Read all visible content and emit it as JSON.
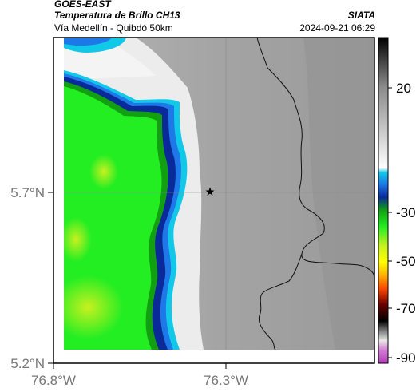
{
  "header": {
    "satellite": "GOES-EAST",
    "product": "Temperatura de Brillo CH13",
    "region": "Vía Medellín - Quibdó 50km",
    "organization": "SIATA",
    "timestamp": "2024-09-21 06:29"
  },
  "axes": {
    "lat_ticks": [
      "5.7°N",
      "5.2°N"
    ],
    "lon_ticks": [
      "76.8°W",
      "76.3°W"
    ]
  },
  "colorbar": {
    "ticks": [
      "20",
      "-30",
      "-50",
      "-70",
      "-90"
    ]
  },
  "marker": {
    "icon": "star-icon"
  },
  "colors": {
    "cold_green": "#22ee22",
    "edge_blue": "#0a2a9a",
    "cyan": "#12c8e8",
    "warm_gray": "#a8a8a8",
    "border_line": "#111111"
  }
}
